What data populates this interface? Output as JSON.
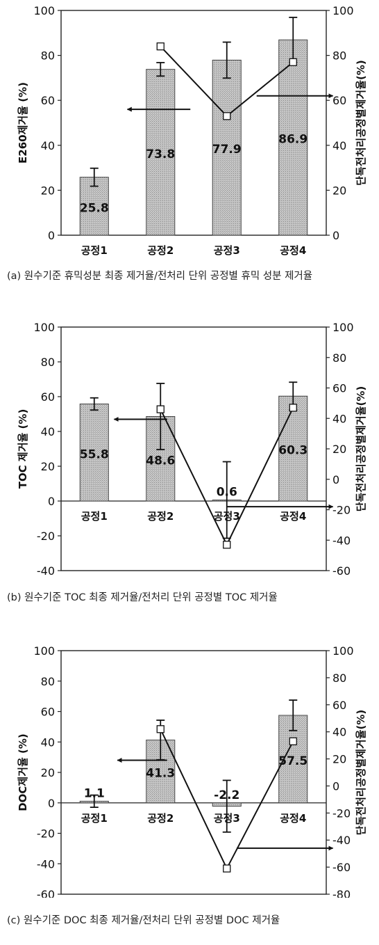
{
  "chart_data": [
    {
      "type": "bar",
      "categories": [
        "공정1",
        "공정2",
        "공정3",
        "공정4"
      ],
      "ylabel": "E260제거율 (%)",
      "y2label": "단독전처리공정별제거율(%)",
      "ylim": [
        0,
        100
      ],
      "y2lim": [
        0,
        100
      ],
      "yticks": [
        "0",
        "20",
        "40",
        "60",
        "80",
        "100"
      ],
      "y2ticks": [
        "0",
        "20",
        "40",
        "60",
        "80",
        "100"
      ],
      "bars": {
        "values": [
          25.8,
          73.8,
          77.9,
          86.9
        ],
        "labels": [
          "25.8",
          "73.8",
          "77.9",
          "86.9"
        ],
        "err": [
          4,
          3,
          8,
          10
        ]
      },
      "line": {
        "axis": "right",
        "values": [
          null,
          84,
          53,
          77
        ]
      },
      "arrows": [
        {
          "from": [
            2.45,
            56
          ],
          "to": [
            1.5,
            56
          ]
        },
        {
          "from": [
            3.45,
            62
          ],
          "to": [
            4.6,
            62
          ]
        }
      ],
      "caption": "(a) 원수기준 휴믹성분 최종 제거율/전처리 단위 공정별 휴믹 성분 제거율"
    },
    {
      "type": "bar",
      "categories": [
        "공정1",
        "공정2",
        "공정3",
        "공정4"
      ],
      "ylabel": "TOC 제거율 (%)",
      "y2label": "단독전처리공정별제거율(%)",
      "ylim": [
        -40,
        100
      ],
      "y2lim": [
        -60,
        100
      ],
      "yticks": [
        "-40",
        "-20",
        "0",
        "20",
        "40",
        "60",
        "80",
        "100"
      ],
      "y2ticks": [
        "-60",
        "-40",
        "-20",
        "0",
        "20",
        "40",
        "60",
        "80",
        "100"
      ],
      "bars": {
        "values": [
          55.8,
          48.6,
          0.6,
          60.3
        ],
        "labels": [
          "55.8",
          "48.6",
          "0.6",
          "60.3"
        ],
        "err": [
          3.5,
          19,
          22,
          8
        ]
      },
      "line": {
        "axis": "right",
        "values": [
          null,
          46,
          -43,
          47
        ]
      },
      "arrows": [
        {
          "from": [
            2.1,
            47
          ],
          "to": [
            1.3,
            47
          ]
        },
        {
          "from": [
            3.0,
            -18
          ],
          "to": [
            4.6,
            -18
          ]
        }
      ],
      "caption": "(b) 원수기준 TOC 최종 제거율/전처리 단위 공정별 TOC 제거율"
    },
    {
      "type": "bar",
      "categories": [
        "공정1",
        "공정2",
        "공정3",
        "공정4"
      ],
      "ylabel": "DOC제거율 (%)",
      "y2label": "단독전처리공정별제거율(%)",
      "ylim": [
        -60,
        100
      ],
      "y2lim": [
        -80,
        100
      ],
      "yticks": [
        "-60",
        "-40",
        "-20",
        "0",
        "20",
        "40",
        "60",
        "80",
        "100"
      ],
      "y2ticks": [
        "-80",
        "-60",
        "-40",
        "-20",
        "0",
        "20",
        "40",
        "60",
        "80",
        "100"
      ],
      "bars": {
        "values": [
          1.1,
          41.3,
          -2.2,
          57.5
        ],
        "labels": [
          "1.1",
          "41.3",
          "-2.2",
          "57.5"
        ],
        "err": [
          4,
          13,
          17,
          10
        ]
      },
      "line": {
        "axis": "right",
        "values": [
          null,
          42,
          -61,
          33
        ]
      },
      "arrows": [
        {
          "from": [
            2.1,
            28
          ],
          "to": [
            1.35,
            28
          ]
        },
        {
          "from": [
            3.15,
            -46
          ],
          "to": [
            4.6,
            -46
          ]
        }
      ],
      "caption": "(c) 원수기준 DOC 최종 제거율/전처리 단위 공정별 DOC 제거율"
    }
  ]
}
